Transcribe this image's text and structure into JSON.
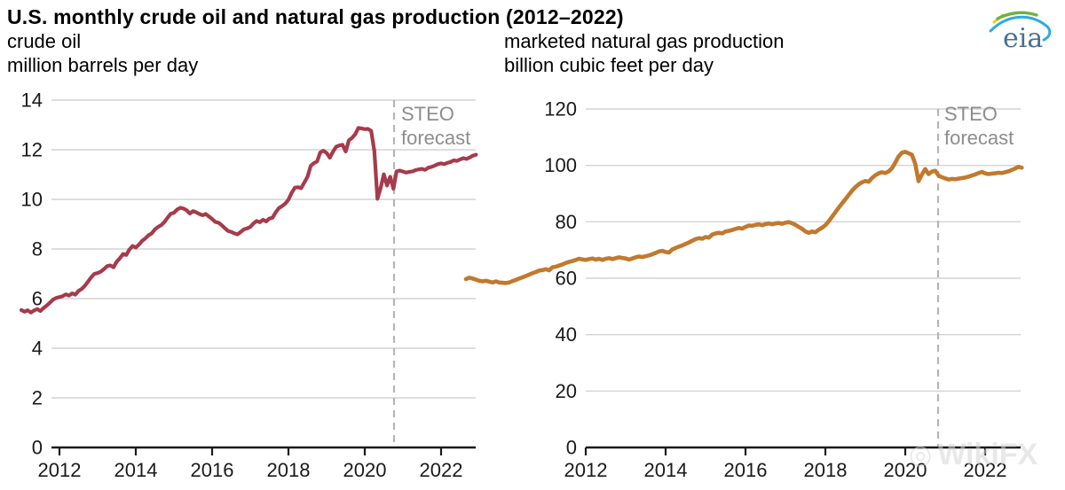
{
  "header": {
    "title": "U.S. monthly crude oil and natural gas production (2012–2022)",
    "logo_text": "eia"
  },
  "watermark": {
    "icon_glyph": "◎",
    "text": "WikiFX"
  },
  "chart_data": [
    {
      "type": "line",
      "title": "crude oil",
      "ylabel": "million barrels per day",
      "series_name": "U.S. monthly crude oil production",
      "color": "#a63b4b",
      "x_start": "2011-01",
      "frequency": "monthly",
      "x_ticks": [
        "2012",
        "2014",
        "2016",
        "2018",
        "2020",
        "2022"
      ],
      "y_ticks": [
        0,
        2,
        4,
        6,
        8,
        10,
        12,
        14
      ],
      "ylim": [
        0,
        14
      ],
      "grid": true,
      "legend_position": "none",
      "annotation": {
        "label_line1": "STEO",
        "label_line2": "forecast",
        "x": "2020-11"
      },
      "values": [
        5.54,
        5.47,
        5.53,
        5.44,
        5.52,
        5.58,
        5.5,
        5.62,
        5.72,
        5.84,
        5.96,
        6.03,
        6.06,
        6.1,
        6.17,
        6.12,
        6.21,
        6.16,
        6.31,
        6.39,
        6.52,
        6.69,
        6.86,
        7.0,
        7.03,
        7.09,
        7.19,
        7.31,
        7.34,
        7.26,
        7.49,
        7.63,
        7.8,
        7.76,
        7.98,
        8.12,
        8.06,
        8.18,
        8.33,
        8.43,
        8.55,
        8.63,
        8.79,
        8.89,
        8.96,
        9.09,
        9.26,
        9.42,
        9.46,
        9.59,
        9.66,
        9.63,
        9.56,
        9.43,
        9.53,
        9.48,
        9.41,
        9.36,
        9.41,
        9.31,
        9.21,
        9.09,
        9.06,
        8.96,
        8.84,
        8.73,
        8.69,
        8.63,
        8.59,
        8.69,
        8.79,
        8.83,
        8.89,
        9.03,
        9.13,
        9.08,
        9.18,
        9.11,
        9.23,
        9.26,
        9.48,
        9.65,
        9.73,
        9.83,
        9.99,
        10.26,
        10.47,
        10.49,
        10.45,
        10.68,
        10.91,
        11.35,
        11.46,
        11.53,
        11.89,
        11.96,
        11.87,
        11.68,
        11.92,
        12.12,
        12.17,
        12.2,
        11.93,
        12.38,
        12.48,
        12.63,
        12.88,
        12.86,
        12.83,
        12.84,
        12.76,
        11.95,
        10.02,
        10.46,
        11.01,
        10.56,
        10.91,
        10.43,
        11.13,
        11.16,
        11.12,
        11.08,
        11.11,
        11.13,
        11.18,
        11.21,
        11.23,
        11.19,
        11.28,
        11.31,
        11.36,
        11.42,
        11.45,
        11.42,
        11.47,
        11.51,
        11.57,
        11.55,
        11.61,
        11.66,
        11.63,
        11.69,
        11.76,
        11.8
      ]
    },
    {
      "type": "line",
      "title": "marketed natural gas production",
      "ylabel": "billion cubic feet per day",
      "series_name": "U.S. marketed natural gas production",
      "color": "#c1792e",
      "x_start": "2009-01",
      "frequency": "monthly",
      "x_ticks": [
        "2012",
        "2014",
        "2016",
        "2018",
        "2020",
        "2022"
      ],
      "y_ticks": [
        0,
        20,
        40,
        60,
        80,
        100,
        120
      ],
      "ylim": [
        0,
        120
      ],
      "grid": true,
      "legend_position": "none",
      "annotation": {
        "label_line1": "STEO",
        "label_line2": "forecast",
        "x": "2020-11"
      },
      "values": [
        59.7,
        60.2,
        59.9,
        59.5,
        59.1,
        58.9,
        59.1,
        58.8,
        58.5,
        58.9,
        58.5,
        58.4,
        58.3,
        58.5,
        59.0,
        59.4,
        59.9,
        60.3,
        60.8,
        61.3,
        61.8,
        62.2,
        62.7,
        62.9,
        63.2,
        62.8,
        63.9,
        64.1,
        64.5,
        64.9,
        65.4,
        65.8,
        66.1,
        66.5,
        66.9,
        66.7,
        66.5,
        66.8,
        67.0,
        66.6,
        66.9,
        66.5,
        66.9,
        67.1,
        66.8,
        67.1,
        67.4,
        67.2,
        67.0,
        66.6,
        67.0,
        67.4,
        67.7,
        67.5,
        67.8,
        68.1,
        68.5,
        69.0,
        69.5,
        69.7,
        69.3,
        69.1,
        70.2,
        70.7,
        71.2,
        71.6,
        72.2,
        72.7,
        73.3,
        73.9,
        74.2,
        74.0,
        74.6,
        74.4,
        75.5,
        75.9,
        76.1,
        75.9,
        76.6,
        76.8,
        77.1,
        77.5,
        77.8,
        77.6,
        78.2,
        78.7,
        78.6,
        78.9,
        79.1,
        78.8,
        79.2,
        79.4,
        79.1,
        79.4,
        79.6,
        79.3,
        79.7,
        79.9,
        79.5,
        78.9,
        78.2,
        77.5,
        76.6,
        76.1,
        76.6,
        76.3,
        77.2,
        77.9,
        78.8,
        80.2,
        81.8,
        83.4,
        85.0,
        86.5,
        88.0,
        89.5,
        91.0,
        92.3,
        93.3,
        94.0,
        94.5,
        94.2,
        95.5,
        96.5,
        97.2,
        97.6,
        97.3,
        97.9,
        99.0,
        101.0,
        103.2,
        104.5,
        104.8,
        104.3,
        103.8,
        100.5,
        94.4,
        96.8,
        98.7,
        96.9,
        97.8,
        98.1,
        96.4,
        95.8,
        95.4,
        95.0,
        95.2,
        95.1,
        95.3,
        95.5,
        95.7,
        96.0,
        96.4,
        96.8,
        97.3,
        97.7,
        97.2,
        96.9,
        97.1,
        97.2,
        97.4,
        97.3,
        97.6,
        97.9,
        98.4,
        98.9,
        99.5,
        99.2
      ]
    }
  ]
}
